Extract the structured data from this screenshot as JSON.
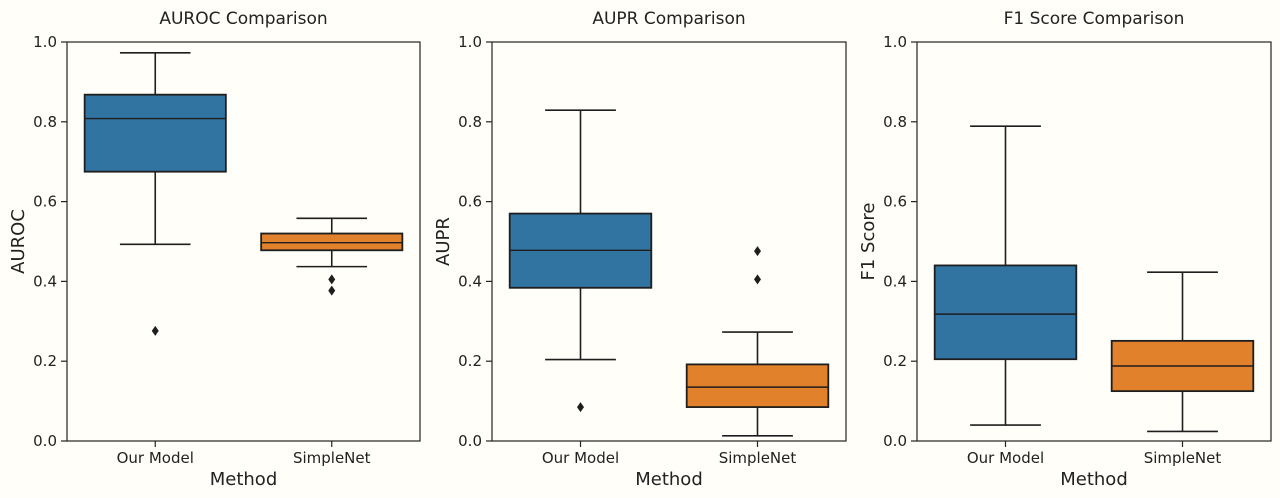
{
  "figure": {
    "background": "#fffef8",
    "colors": {
      "Our Model": "#3274a1",
      "SimpleNet": "#e1812c",
      "edge": "#1e1e1e"
    }
  },
  "chart_data": [
    {
      "type": "box",
      "title": "AUROC Comparison",
      "xlabel": "Method",
      "ylabel": "AUROC",
      "ylim": [
        0.0,
        1.0
      ],
      "yticks": [
        "0.0",
        "0.2",
        "0.4",
        "0.6",
        "0.8",
        "1.0"
      ],
      "categories": [
        "Our Model",
        "SimpleNet"
      ],
      "boxes": [
        {
          "name": "Our Model",
          "whisker_low": 0.493,
          "q1": 0.675,
          "median": 0.808,
          "q3": 0.868,
          "whisker_high": 0.973,
          "outliers": [
            0.276
          ]
        },
        {
          "name": "SimpleNet",
          "whisker_low": 0.437,
          "q1": 0.478,
          "median": 0.497,
          "q3": 0.52,
          "whisker_high": 0.558,
          "outliers": [
            0.405,
            0.377
          ]
        }
      ]
    },
    {
      "type": "box",
      "title": "AUPR Comparison",
      "xlabel": "Method",
      "ylabel": "AUPR",
      "ylim": [
        0.0,
        1.0
      ],
      "yticks": [
        "0.0",
        "0.2",
        "0.4",
        "0.6",
        "0.8",
        "1.0"
      ],
      "categories": [
        "Our Model",
        "SimpleNet"
      ],
      "boxes": [
        {
          "name": "Our Model",
          "whisker_low": 0.204,
          "q1": 0.384,
          "median": 0.478,
          "q3": 0.57,
          "whisker_high": 0.829,
          "outliers": [
            0.085
          ]
        },
        {
          "name": "SimpleNet",
          "whisker_low": 0.013,
          "q1": 0.085,
          "median": 0.135,
          "q3": 0.192,
          "whisker_high": 0.273,
          "outliers": [
            0.405,
            0.476
          ]
        }
      ]
    },
    {
      "type": "box",
      "title": "F1 Score Comparison",
      "xlabel": "Method",
      "ylabel": "F1 Score",
      "ylim": [
        0.0,
        1.0
      ],
      "yticks": [
        "0.0",
        "0.2",
        "0.4",
        "0.6",
        "0.8",
        "1.0"
      ],
      "categories": [
        "Our Model",
        "SimpleNet"
      ],
      "boxes": [
        {
          "name": "Our Model",
          "whisker_low": 0.04,
          "q1": 0.205,
          "median": 0.318,
          "q3": 0.44,
          "whisker_high": 0.789,
          "outliers": []
        },
        {
          "name": "SimpleNet",
          "whisker_low": 0.024,
          "q1": 0.125,
          "median": 0.188,
          "q3": 0.251,
          "whisker_high": 0.423,
          "outliers": []
        }
      ]
    }
  ]
}
